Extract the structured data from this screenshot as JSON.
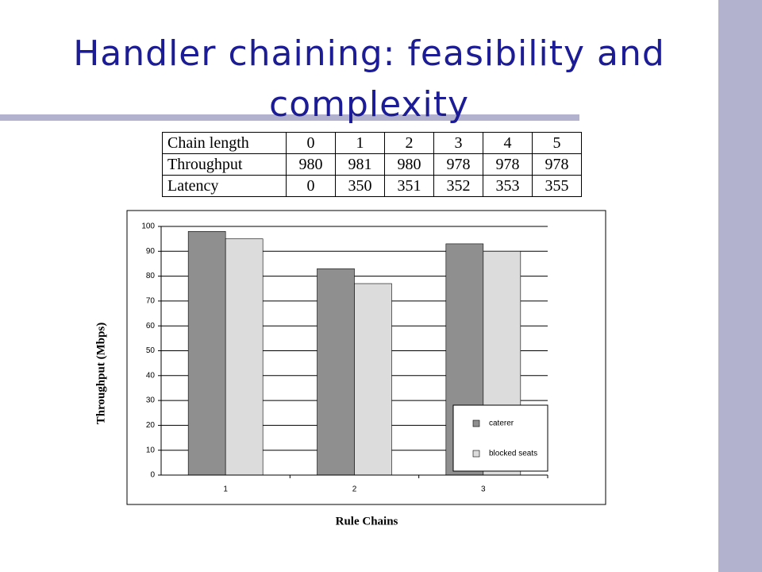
{
  "title": "Handler chaining: feasibility and complexity",
  "table": {
    "rows": [
      [
        "Chain length",
        0,
        1,
        2,
        3,
        4,
        5
      ],
      [
        "Throughput",
        980,
        981,
        980,
        978,
        978,
        978
      ],
      [
        "Latency",
        0,
        350,
        351,
        352,
        353,
        355
      ]
    ]
  },
  "chart_data": {
    "type": "bar",
    "categories": [
      "1",
      "2",
      "3"
    ],
    "series": [
      {
        "name": "caterer",
        "color": "#8f8f8f",
        "values": [
          98,
          83,
          93
        ]
      },
      {
        "name": "blocked seats",
        "color": "#dcdcdc",
        "values": [
          95,
          77,
          90
        ]
      }
    ],
    "ylim": [
      0,
      100
    ],
    "yticks": [
      0,
      10,
      20,
      30,
      40,
      50,
      60,
      70,
      80,
      90,
      100
    ],
    "grid": true,
    "y_label": "Throughput (Mbps)",
    "x_label": "Rule Chains"
  }
}
